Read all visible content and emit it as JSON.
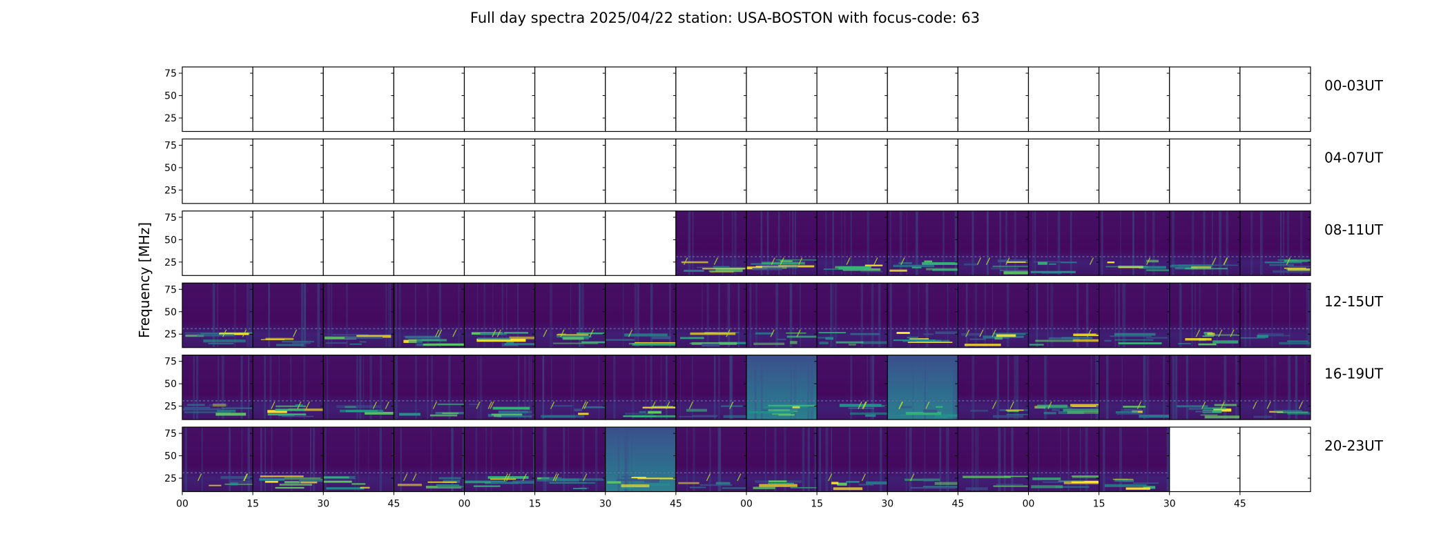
{
  "chart_data": {
    "type": "heatmap",
    "title": "Full day spectra 2025/04/22 station: USA-BOSTON with focus-code: 63",
    "ylabel": "Frequency [MHz]",
    "xlabel": "",
    "ylim": [
      10,
      82
    ],
    "yticks": [
      25,
      50,
      75
    ],
    "xtick_labels": [
      "00",
      "15",
      "30",
      "45",
      "00",
      "15",
      "30",
      "45",
      "00",
      "15",
      "30",
      "45",
      "00",
      "15",
      "30",
      "45"
    ],
    "rows": [
      {
        "label": "00-03UT",
        "panels": [
          0,
          0,
          0,
          0,
          0,
          0,
          0,
          0,
          0,
          0,
          0,
          0,
          0,
          0,
          0,
          0
        ]
      },
      {
        "label": "04-07UT",
        "panels": [
          0,
          0,
          0,
          0,
          0,
          0,
          0,
          0,
          0,
          0,
          0,
          0,
          0,
          0,
          0,
          0
        ]
      },
      {
        "label": "08-11UT",
        "panels": [
          0,
          0,
          0,
          0,
          0,
          0,
          0,
          1,
          1,
          1,
          1,
          1,
          1,
          1,
          1,
          1
        ]
      },
      {
        "label": "12-15UT",
        "panels": [
          1,
          1,
          1,
          1,
          1,
          1,
          1,
          1,
          1,
          1,
          1,
          1,
          1,
          1,
          1,
          1
        ]
      },
      {
        "label": "16-19UT",
        "panels": [
          1,
          1,
          1,
          1,
          1,
          1,
          1,
          1,
          1,
          1,
          1,
          1,
          1,
          1,
          1,
          1
        ]
      },
      {
        "label": "20-23UT",
        "panels": [
          1,
          1,
          1,
          1,
          1,
          1,
          1,
          1,
          1,
          1,
          1,
          1,
          1,
          1,
          0,
          0
        ]
      }
    ],
    "colormap": "viridis",
    "colors": {
      "background": "#440a68",
      "mid": "#31688e",
      "high": "#35b779",
      "peak": "#fde725"
    }
  }
}
